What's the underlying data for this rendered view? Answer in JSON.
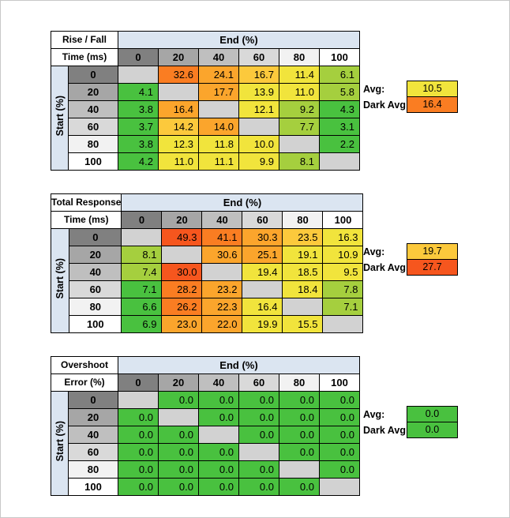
{
  "page": {
    "background": "#ffffff",
    "frame_border": "#c8c8c8"
  },
  "labels": {
    "avg": "Avg:",
    "dark_avg": "Dark Avg:"
  },
  "axis": {
    "x_title": "End (%)",
    "y_title": "Start (%)",
    "ticks": [
      0,
      20,
      40,
      60,
      80,
      100
    ],
    "tick_fills": [
      "#808080",
      "#a6a6a6",
      "#bfbfbf",
      "#d9d9d9",
      "#f2f2f2",
      "#ffffff"
    ]
  },
  "colors": {
    "header_panel": "#dbe5f1",
    "diagonal_cell": "#d2d2d2",
    "cell_border": "#000000"
  },
  "scale": {
    "g": "#49c13f",
    "gy": "#a5cf3e",
    "y": "#f1e43c",
    "yo": "#fcc93c",
    "o": "#fba52c",
    "od": "#fa7d22",
    "r": "#f6561e"
  },
  "chart_data": [
    {
      "type": "heatmap",
      "title": "Rise / Fall Time (ms)",
      "title_line1": "Rise / Fall",
      "title_line2": "Time (ms)",
      "xlabel": "End (%)",
      "ylabel": "Start (%)",
      "x": [
        0,
        20,
        40,
        60,
        80,
        100
      ],
      "y": [
        0,
        20,
        40,
        60,
        80,
        100
      ],
      "values": [
        [
          null,
          32.6,
          24.1,
          16.7,
          11.4,
          6.1
        ],
        [
          4.1,
          null,
          17.7,
          13.9,
          11.0,
          5.8
        ],
        [
          3.8,
          16.4,
          null,
          12.1,
          9.2,
          4.3
        ],
        [
          3.7,
          14.2,
          14.0,
          null,
          7.7,
          3.1
        ],
        [
          3.8,
          12.3,
          11.8,
          10.0,
          null,
          2.2
        ],
        [
          4.2,
          11.0,
          11.1,
          9.9,
          8.1,
          null
        ]
      ],
      "cell_colors": [
        [
          null,
          "od",
          "o",
          "yo",
          "y",
          "gy"
        ],
        [
          "g",
          null,
          "o",
          "y",
          "y",
          "gy"
        ],
        [
          "g",
          "o",
          null,
          "y",
          "gy",
          "g"
        ],
        [
          "g",
          "yo",
          "o",
          null,
          "gy",
          "g"
        ],
        [
          "g",
          "y",
          "y",
          "y",
          null,
          "g"
        ],
        [
          "g",
          "y",
          "y",
          "y",
          "gy",
          null
        ]
      ],
      "avg_value": 10.5,
      "avg_color": "y",
      "dark_avg_value": 16.4,
      "dark_avg_color": "od"
    },
    {
      "type": "heatmap",
      "title": "Total Response Time (ms)",
      "title_line1": "Total Response",
      "title_line2": "Time (ms)",
      "xlabel": "End (%)",
      "ylabel": "Start (%)",
      "x": [
        0,
        20,
        40,
        60,
        80,
        100
      ],
      "y": [
        0,
        20,
        40,
        60,
        80,
        100
      ],
      "values": [
        [
          null,
          49.3,
          41.1,
          30.3,
          23.5,
          16.3
        ],
        [
          8.1,
          null,
          30.6,
          25.1,
          19.1,
          10.9
        ],
        [
          7.4,
          30.0,
          null,
          19.4,
          18.5,
          9.5
        ],
        [
          7.1,
          28.2,
          23.2,
          null,
          18.4,
          7.8
        ],
        [
          6.6,
          26.2,
          22.3,
          16.4,
          null,
          7.1
        ],
        [
          6.9,
          23.0,
          22.0,
          19.9,
          15.5,
          null
        ]
      ],
      "cell_colors": [
        [
          null,
          "r",
          "od",
          "o",
          "yo",
          "y"
        ],
        [
          "gy",
          null,
          "o",
          "o",
          "y",
          "y"
        ],
        [
          "gy",
          "r",
          null,
          "y",
          "y",
          "y"
        ],
        [
          "g",
          "od",
          "o",
          null,
          "y",
          "gy"
        ],
        [
          "g",
          "od",
          "o",
          "y",
          null,
          "gy"
        ],
        [
          "g",
          "o",
          "o",
          "y",
          "y",
          null
        ]
      ],
      "avg_value": 19.7,
      "avg_color": "yo",
      "dark_avg_value": 27.7,
      "dark_avg_color": "r"
    },
    {
      "type": "heatmap",
      "title": "Overshoot Error (%)",
      "title_line1": "Overshoot",
      "title_line2": "Error (%)",
      "xlabel": "End (%)",
      "ylabel": "Start (%)",
      "x": [
        0,
        20,
        40,
        60,
        80,
        100
      ],
      "y": [
        0,
        20,
        40,
        60,
        80,
        100
      ],
      "values": [
        [
          null,
          0.0,
          0.0,
          0.0,
          0.0,
          0.0
        ],
        [
          0.0,
          null,
          0.0,
          0.0,
          0.0,
          0.0
        ],
        [
          0.0,
          0.0,
          null,
          0.0,
          0.0,
          0.0
        ],
        [
          0.0,
          0.0,
          0.0,
          null,
          0.0,
          0.0
        ],
        [
          0.0,
          0.0,
          0.0,
          0.0,
          null,
          0.0
        ],
        [
          0.0,
          0.0,
          0.0,
          0.0,
          0.0,
          null
        ]
      ],
      "cell_colors": [
        [
          null,
          "g",
          "g",
          "g",
          "g",
          "g"
        ],
        [
          "g",
          null,
          "g",
          "g",
          "g",
          "g"
        ],
        [
          "g",
          "g",
          null,
          "g",
          "g",
          "g"
        ],
        [
          "g",
          "g",
          "g",
          null,
          "g",
          "g"
        ],
        [
          "g",
          "g",
          "g",
          "g",
          null,
          "g"
        ],
        [
          "g",
          "g",
          "g",
          "g",
          "g",
          null
        ]
      ],
      "avg_value": 0.0,
      "avg_color": "g",
      "dark_avg_value": 0.0,
      "dark_avg_color": "g"
    }
  ]
}
